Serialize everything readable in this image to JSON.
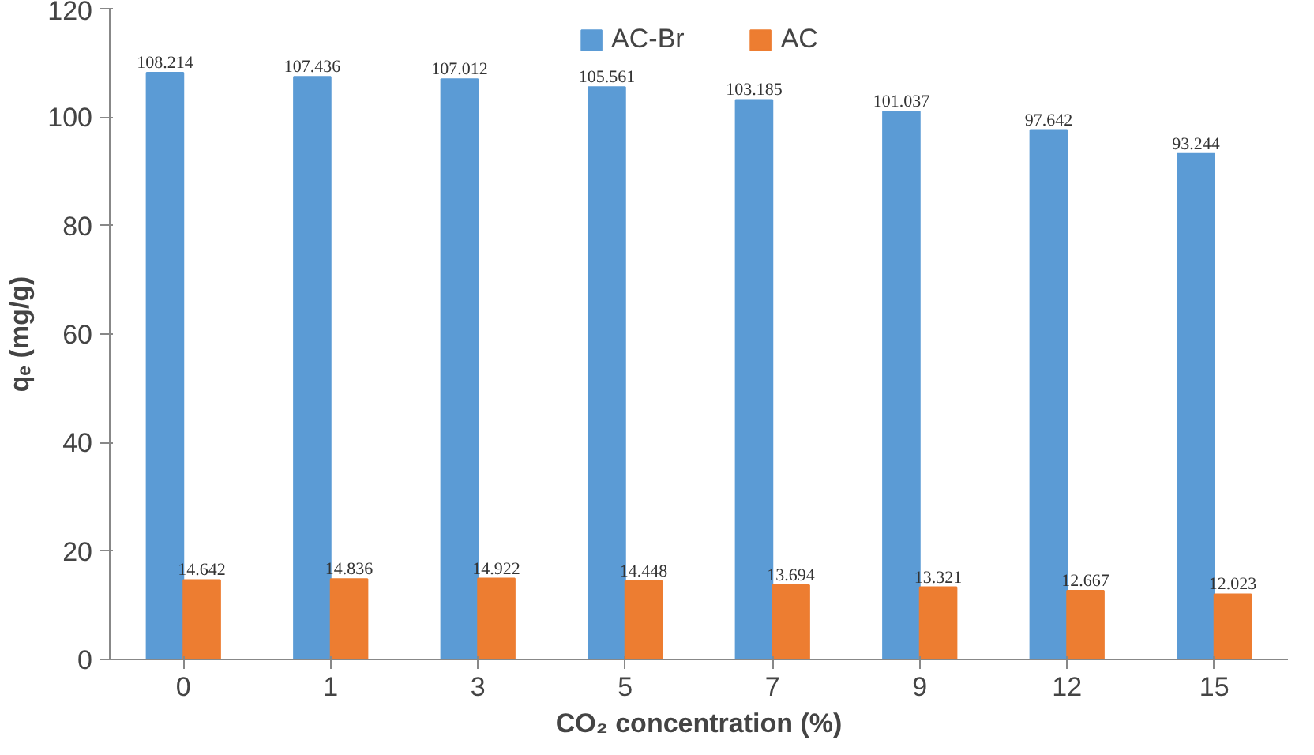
{
  "chart_data": {
    "type": "bar",
    "xlabel": "CO₂ concentration (%)",
    "ylabel": "qₑ (mg/g)",
    "categories": [
      "0",
      "1",
      "3",
      "5",
      "7",
      "9",
      "12",
      "15"
    ],
    "series": [
      {
        "name": "AC-Br",
        "color": "#5b9bd5",
        "values": [
          108.214,
          107.436,
          107.012,
          105.561,
          103.185,
          101.037,
          97.642,
          93.244
        ]
      },
      {
        "name": "AC",
        "color": "#ed7d31",
        "values": [
          14.642,
          14.836,
          14.922,
          14.448,
          13.694,
          13.321,
          12.667,
          12.023
        ]
      }
    ],
    "ylim": [
      0,
      120
    ],
    "yticks": [
      0,
      20,
      40,
      60,
      80,
      100,
      120
    ],
    "grid": false,
    "legend": "top",
    "data_labels": true
  }
}
